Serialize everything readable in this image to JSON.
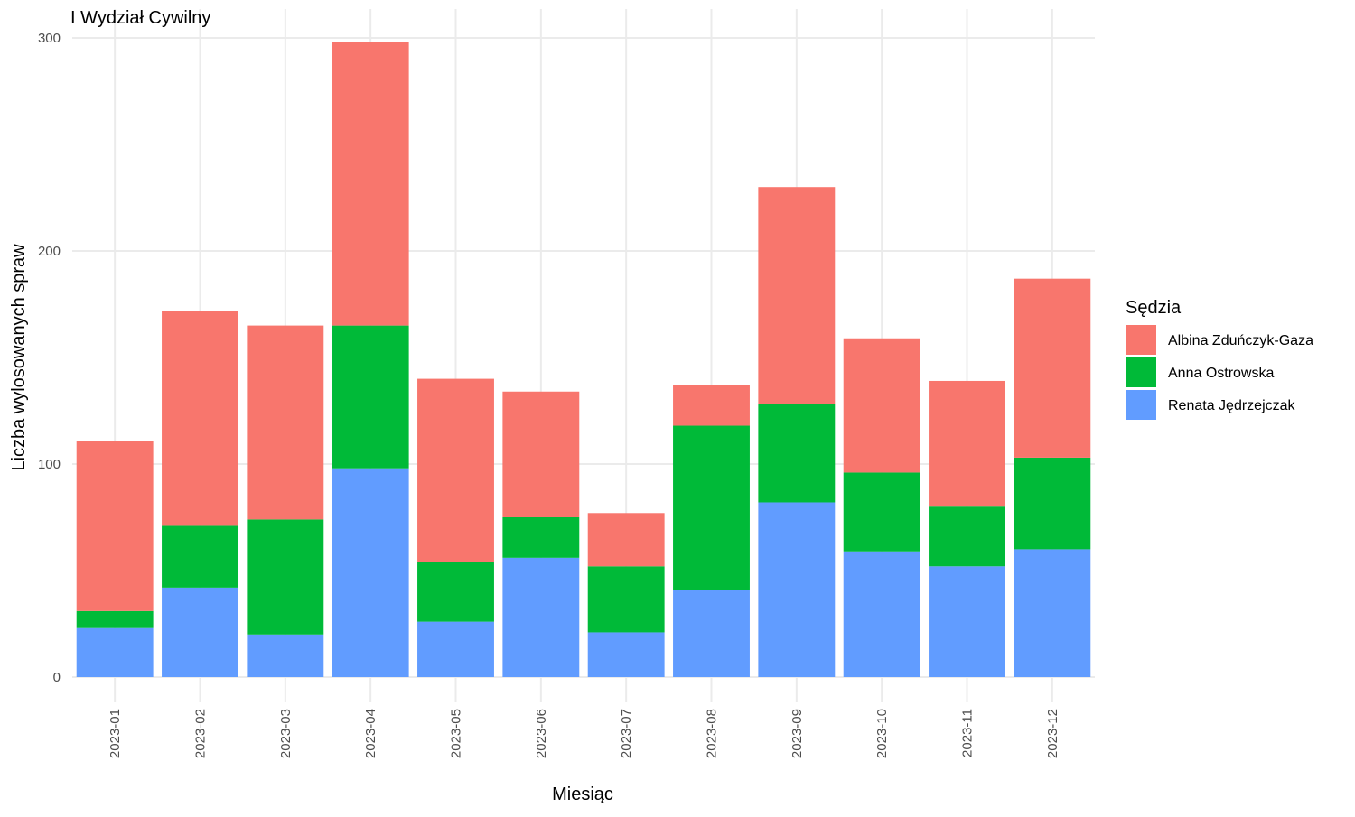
{
  "chart_data": {
    "type": "bar",
    "stacked": true,
    "title": "I Wydział Cywilny",
    "xlabel": "Miesiąc",
    "ylabel": "Liczba wylosowanych spraw",
    "ylim": [
      0,
      310
    ],
    "yticks": [
      0,
      100,
      200,
      300
    ],
    "grid": true,
    "legend": {
      "title": "Sędzia",
      "placement": "right"
    },
    "categories": [
      "2023-01",
      "2023-02",
      "2023-03",
      "2023-04",
      "2023-05",
      "2023-06",
      "2023-07",
      "2023-08",
      "2023-09",
      "2023-10",
      "2023-11",
      "2023-12"
    ],
    "series": [
      {
        "name": "Albina Zduńczyk-Gaza",
        "color": "#F8766D",
        "values": [
          80,
          101,
          91,
          133,
          86,
          59,
          25,
          19,
          102,
          63,
          59,
          84
        ]
      },
      {
        "name": "Anna Ostrowska",
        "color": "#00BA38",
        "values": [
          8,
          29,
          54,
          67,
          28,
          19,
          31,
          77,
          46,
          37,
          28,
          43
        ]
      },
      {
        "name": "Renata Jędrzejczak",
        "color": "#619CFF",
        "values": [
          23,
          42,
          20,
          98,
          26,
          56,
          21,
          41,
          82,
          59,
          52,
          60
        ]
      }
    ],
    "stack_order_bottom_to_top": [
      "Renata Jędrzejczak",
      "Anna Ostrowska",
      "Albina Zduńczyk-Gaza"
    ]
  }
}
